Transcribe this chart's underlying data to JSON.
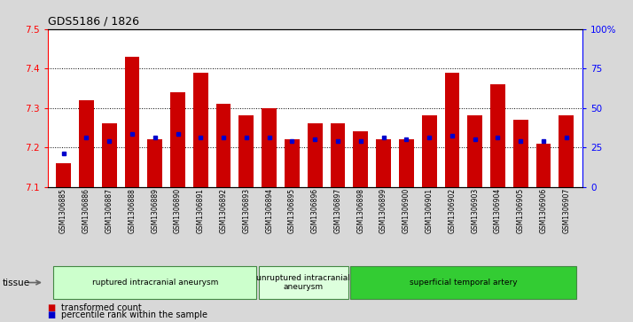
{
  "title": "GDS5186 / 1826",
  "samples": [
    "GSM1306885",
    "GSM1306886",
    "GSM1306887",
    "GSM1306888",
    "GSM1306889",
    "GSM1306890",
    "GSM1306891",
    "GSM1306892",
    "GSM1306893",
    "GSM1306894",
    "GSM1306895",
    "GSM1306896",
    "GSM1306897",
    "GSM1306898",
    "GSM1306899",
    "GSM1306900",
    "GSM1306901",
    "GSM1306902",
    "GSM1306903",
    "GSM1306904",
    "GSM1306905",
    "GSM1306906",
    "GSM1306907"
  ],
  "bar_values": [
    7.16,
    7.32,
    7.26,
    7.43,
    7.22,
    7.34,
    7.39,
    7.31,
    7.28,
    7.3,
    7.22,
    7.26,
    7.26,
    7.24,
    7.22,
    7.22,
    7.28,
    7.39,
    7.28,
    7.36,
    7.27,
    7.21,
    7.28
  ],
  "percentile_values": [
    7.185,
    7.225,
    7.215,
    7.235,
    7.225,
    7.235,
    7.225,
    7.225,
    7.225,
    7.225,
    7.215,
    7.22,
    7.215,
    7.215,
    7.225,
    7.22,
    7.225,
    7.23,
    7.22,
    7.225,
    7.215,
    7.215,
    7.225
  ],
  "bar_color": "#cc0000",
  "percentile_color": "#0000cc",
  "ymin": 7.1,
  "ymax": 7.5,
  "yticks": [
    7.1,
    7.2,
    7.3,
    7.4,
    7.5
  ],
  "right_yticks": [
    0,
    25,
    50,
    75,
    100
  ],
  "right_ytick_labels": [
    "0",
    "25",
    "50",
    "75",
    "100%"
  ],
  "groups": [
    {
      "label": "ruptured intracranial aneurysm",
      "start": 0,
      "end": 9,
      "color": "#ccffcc"
    },
    {
      "label": "unruptured intracranial\naneurysm",
      "start": 9,
      "end": 13,
      "color": "#ddffdd"
    },
    {
      "label": "superficial temporal artery",
      "start": 13,
      "end": 23,
      "color": "#33cc33"
    }
  ],
  "legend_items": [
    {
      "label": "transformed count",
      "color": "#cc0000"
    },
    {
      "label": "percentile rank within the sample",
      "color": "#0000cc"
    }
  ],
  "tissue_label": "tissue",
  "bg_color": "#d8d8d8",
  "plot_bg": "#ffffff"
}
